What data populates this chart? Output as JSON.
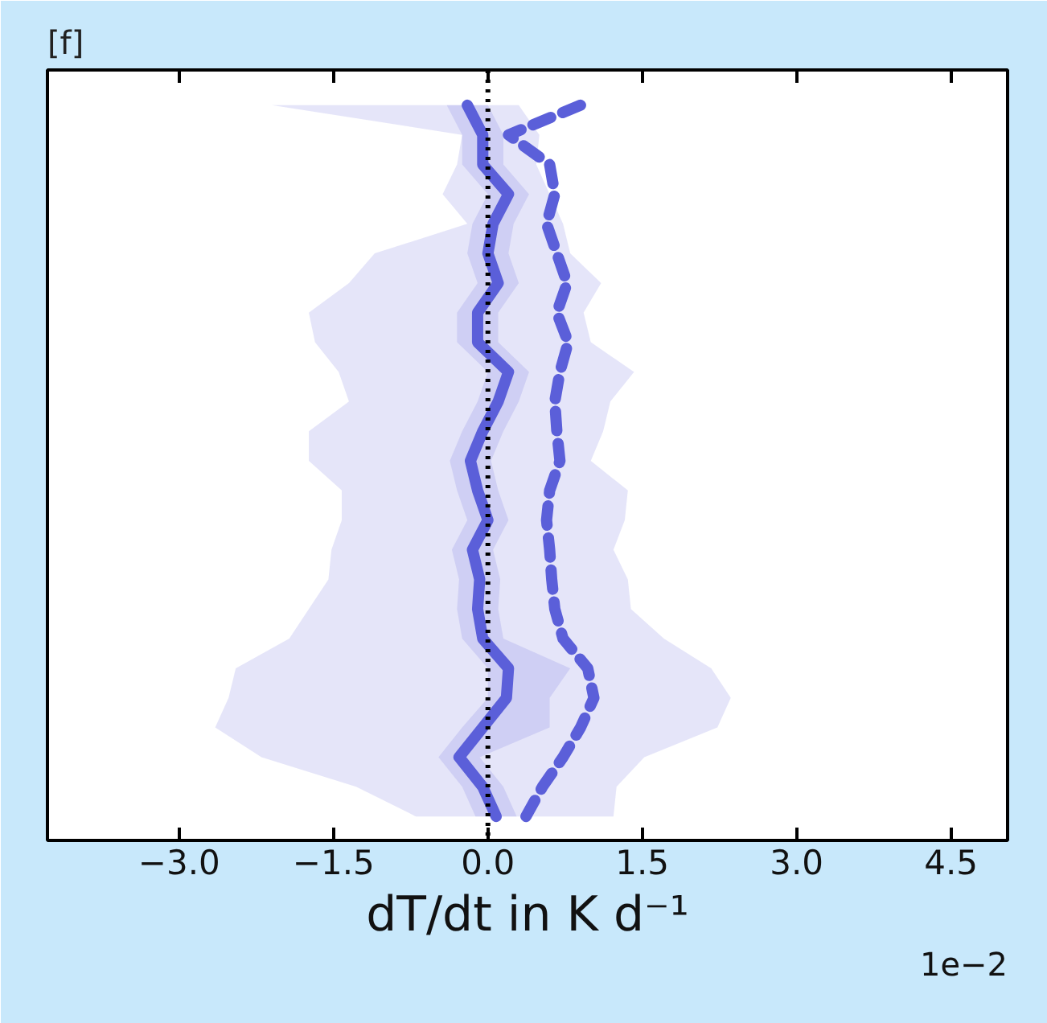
{
  "chart_data": {
    "type": "line",
    "orientation": "horizontal",
    "title": "[f]",
    "xlabel": "dT/dt in K d⁻¹",
    "annotations": [
      "1e−2"
    ],
    "categories": [
      null,
      null,
      null,
      null,
      null,
      null,
      null,
      null,
      null,
      null,
      null,
      null,
      null,
      null,
      null,
      null,
      null,
      null,
      null,
      null,
      null,
      null,
      null,
      null,
      null
    ],
    "xlim": [
      -4.28,
      5.05
    ],
    "xticks": [
      {
        "value": -3.0,
        "label": "−3.0"
      },
      {
        "value": -1.5,
        "label": "−1.5"
      },
      {
        "value": 0.0,
        "label": "0.0"
      },
      {
        "value": 1.5,
        "label": "1.5"
      },
      {
        "value": 3.0,
        "label": "3.0"
      },
      {
        "value": 4.5,
        "label": "4.5"
      }
    ],
    "tick_labels": "x",
    "grid": false,
    "marker": "none",
    "ref_lines": [
      {
        "axis": "x",
        "value": 0,
        "color": "#000000",
        "line_style": "dotted"
      }
    ],
    "series": [
      {
        "color": "#5b5fd9",
        "line_style": "solid",
        "values": [
          -0.2,
          -0.05,
          -0.05,
          0.2,
          0.05,
          0.0,
          0.1,
          -0.1,
          -0.1,
          0.2,
          0.1,
          -0.05,
          -0.17,
          -0.1,
          0.0,
          -0.15,
          -0.08,
          -0.1,
          -0.05,
          0.2,
          0.18,
          -0.05,
          -0.28,
          -0.05,
          0.08
        ],
        "lower": [
          -0.4,
          -0.25,
          -0.25,
          0.0,
          -0.15,
          -0.2,
          -0.1,
          -0.3,
          -0.3,
          0.0,
          -0.1,
          -0.25,
          -0.37,
          -0.3,
          -0.2,
          -0.35,
          -0.28,
          -0.3,
          -0.25,
          0.0,
          0.0,
          -0.25,
          -0.48,
          -0.25,
          -0.12
        ],
        "upper": [
          0.0,
          0.15,
          0.15,
          0.4,
          0.25,
          0.2,
          0.3,
          0.1,
          0.1,
          0.4,
          0.3,
          0.15,
          0.03,
          0.1,
          0.2,
          0.05,
          0.12,
          0.1,
          0.15,
          0.8,
          0.6,
          0.6,
          -0.08,
          0.15,
          0.28
        ]
      },
      {
        "color": "#5b5fd9",
        "line_style": "dashed",
        "values": [
          0.9,
          0.2,
          0.6,
          0.65,
          0.57,
          0.67,
          0.77,
          0.67,
          0.78,
          0.7,
          0.65,
          0.67,
          0.7,
          0.6,
          0.57,
          0.6,
          0.62,
          0.65,
          0.73,
          0.97,
          1.03,
          0.9,
          0.73,
          0.53,
          0.37
        ],
        "lower": [
          -2.1,
          -0.25,
          -0.3,
          -0.44,
          -0.2,
          -1.1,
          -1.35,
          -1.74,
          -1.68,
          -1.45,
          -1.35,
          -1.74,
          -1.74,
          -1.42,
          -1.42,
          -1.52,
          -1.55,
          -1.74,
          -1.93,
          -2.45,
          -2.52,
          -2.65,
          -2.2,
          -1.28,
          -0.7
        ],
        "upper": [
          0.3,
          0.5,
          0.47,
          0.6,
          0.73,
          0.8,
          1.1,
          0.93,
          1.0,
          1.42,
          1.19,
          1.12,
          1.0,
          1.36,
          1.33,
          1.22,
          1.36,
          1.39,
          1.71,
          2.17,
          2.36,
          2.23,
          1.52,
          1.25,
          1.22
        ]
      }
    ]
  }
}
